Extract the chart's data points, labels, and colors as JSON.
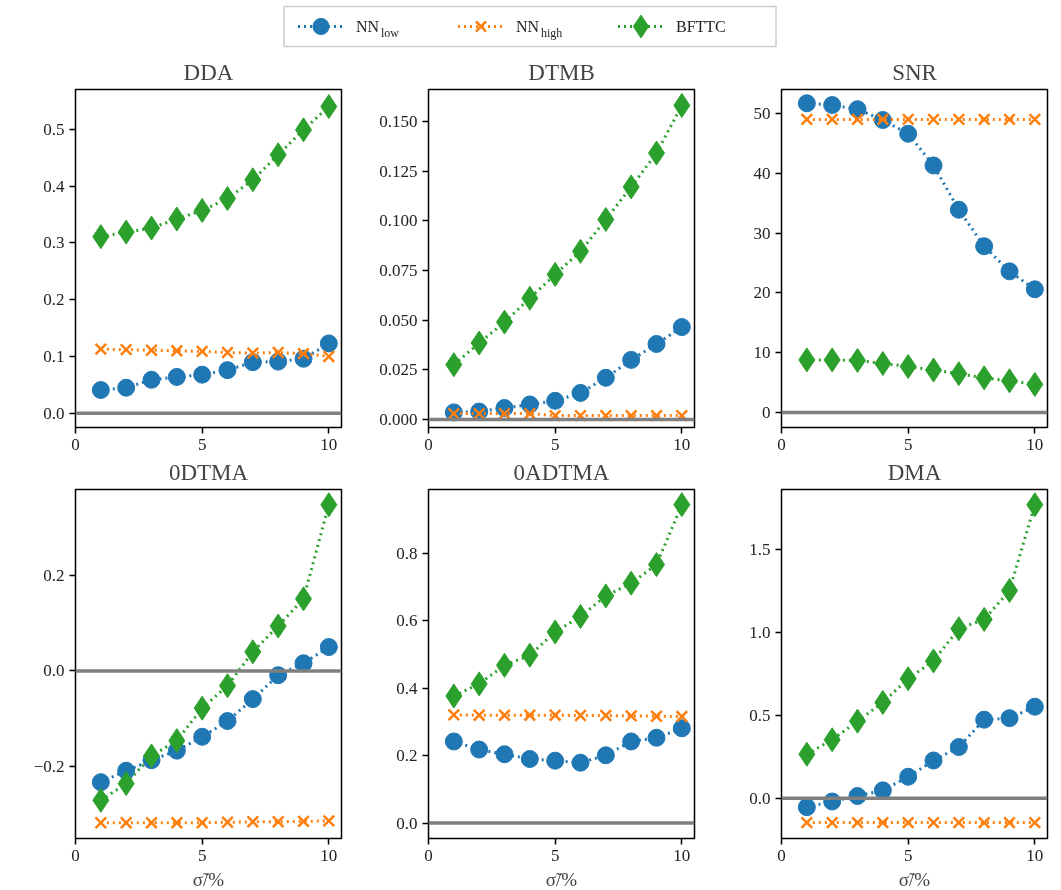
{
  "chart_data": [
    {
      "type": "line",
      "title": "DDA",
      "legend": "top",
      "line_style": "dotted",
      "grid": false,
      "x": [
        1,
        2,
        3,
        4,
        5,
        6,
        7,
        8,
        9,
        10
      ],
      "xlim": [
        0,
        10.5
      ],
      "xticks": [
        0,
        5,
        10
      ],
      "ylim": [
        -0.025,
        0.57
      ],
      "yticks": [
        {
          "value": 0,
          "label": "0.0"
        },
        0.1,
        0.2,
        0.3,
        0.4,
        0.5
      ],
      "ref_lines": [
        {
          "axis": "y",
          "value": 0,
          "color": "#808080"
        }
      ],
      "series": [
        {
          "name": "NN$_{low}$",
          "color": "#1f77b4",
          "marker": "circle",
          "values": [
            0.041,
            0.045,
            0.059,
            0.064,
            0.068,
            0.076,
            0.09,
            0.091,
            0.096,
            0.123
          ]
        },
        {
          "name": "NN$_{high}$",
          "color": "#ff7f0e",
          "marker": "cross",
          "values": [
            0.113,
            0.112,
            0.111,
            0.11,
            0.109,
            0.107,
            0.106,
            0.107,
            0.105,
            0.1
          ]
        },
        {
          "name": "BFTTC",
          "color": "#2ca02c",
          "marker": "diamond",
          "values": [
            0.311,
            0.319,
            0.326,
            0.342,
            0.357,
            0.378,
            0.411,
            0.455,
            0.499,
            0.54
          ]
        }
      ]
    },
    {
      "type": "line",
      "title": "DTMB",
      "line_style": "dotted",
      "grid": false,
      "x": [
        1,
        2,
        3,
        4,
        5,
        6,
        7,
        8,
        9,
        10
      ],
      "xlim": [
        0,
        10.5
      ],
      "xticks": [
        0,
        5,
        10
      ],
      "ylim": [
        -0.004,
        0.166
      ],
      "yticks": [
        {
          "value": 0,
          "label": "0.000"
        },
        {
          "value": 0.025,
          "label": "0.025"
        },
        {
          "value": 0.05,
          "label": "0.050"
        },
        {
          "value": 0.075,
          "label": "0.075"
        },
        {
          "value": 0.1,
          "label": "0.100"
        },
        {
          "value": 0.125,
          "label": "0.125"
        },
        {
          "value": 0.15,
          "label": "0.150"
        }
      ],
      "ref_lines": [
        {
          "axis": "y",
          "value": 0,
          "color": "#808080"
        }
      ],
      "series": [
        {
          "color": "#1f77b4",
          "marker": "circle",
          "values": [
            0.0036,
            0.004,
            0.0058,
            0.0076,
            0.0094,
            0.0134,
            0.021,
            0.03,
            0.038,
            0.0465
          ]
        },
        {
          "color": "#ff7f0e",
          "marker": "cross",
          "values": [
            0.003,
            0.003,
            0.003,
            0.003,
            0.002,
            0.002,
            0.002,
            0.002,
            0.002,
            0.002
          ]
        },
        {
          "color": "#2ca02c",
          "marker": "diamond",
          "values": [
            0.0276,
            0.0385,
            0.049,
            0.061,
            0.073,
            0.0846,
            0.1006,
            0.117,
            0.134,
            0.158
          ]
        }
      ]
    },
    {
      "type": "line",
      "title": "SNR",
      "line_style": "dotted",
      "grid": false,
      "x": [
        1,
        2,
        3,
        4,
        5,
        6,
        7,
        8,
        9,
        10
      ],
      "xlim": [
        0,
        10.5
      ],
      "xticks": [
        0,
        5,
        10
      ],
      "ylim": [
        -2.5,
        54
      ],
      "yticks": [
        0,
        10,
        20,
        30,
        40,
        50
      ],
      "ref_lines": [
        {
          "axis": "y",
          "value": 0,
          "color": "#808080"
        }
      ],
      "series": [
        {
          "color": "#1f77b4",
          "marker": "circle",
          "values": [
            51.7,
            51.4,
            50.7,
            48.9,
            46.6,
            41.3,
            33.9,
            27.8,
            23.6,
            20.6
          ]
        },
        {
          "color": "#ff7f0e",
          "marker": "cross",
          "values": [
            49,
            49,
            49,
            49,
            49,
            49,
            49,
            49,
            49,
            49
          ]
        },
        {
          "color": "#2ca02c",
          "marker": "diamond",
          "values": [
            8.8,
            8.8,
            8.7,
            8.2,
            7.7,
            7.1,
            6.5,
            5.8,
            5.3,
            4.7
          ]
        }
      ]
    },
    {
      "type": "line",
      "title": "0DTMA",
      "xlabel": "σ̃/%",
      "line_style": "dotted",
      "grid": false,
      "x": [
        1,
        2,
        3,
        4,
        5,
        6,
        7,
        8,
        9,
        10
      ],
      "xlim": [
        0,
        10.5
      ],
      "xticks": [
        0,
        5,
        10
      ],
      "ylim": [
        -0.351,
        0.38
      ],
      "yticks": [
        {
          "value": -0.2,
          "label": "−0.2"
        },
        {
          "value": 0,
          "label": "0.0"
        },
        0.2
      ],
      "ref_lines": [
        {
          "axis": "y",
          "value": 0,
          "color": "#808080"
        }
      ],
      "series": [
        {
          "color": "#1f77b4",
          "marker": "circle",
          "values": [
            -0.233,
            -0.209,
            -0.187,
            -0.167,
            -0.138,
            -0.105,
            -0.059,
            -0.009,
            0.016,
            0.05
          ]
        },
        {
          "color": "#ff7f0e",
          "marker": "cross",
          "values": [
            -0.318,
            -0.318,
            -0.318,
            -0.318,
            -0.318,
            -0.317,
            -0.316,
            -0.316,
            -0.315,
            -0.314
          ]
        },
        {
          "color": "#2ca02c",
          "marker": "diamond",
          "values": [
            -0.271,
            -0.236,
            -0.178,
            -0.146,
            -0.078,
            -0.031,
            0.04,
            0.094,
            0.151,
            0.348
          ]
        }
      ]
    },
    {
      "type": "line",
      "title": "0ADTMA",
      "xlabel": "σ̃/%",
      "line_style": "dotted",
      "grid": false,
      "x": [
        1,
        2,
        3,
        4,
        5,
        6,
        7,
        8,
        9,
        10
      ],
      "xlim": [
        0,
        10.5
      ],
      "xticks": [
        0,
        5,
        10
      ],
      "ylim": [
        -0.046,
        0.99
      ],
      "yticks": [
        {
          "value": 0,
          "label": "0.0"
        },
        0.2,
        0.4,
        0.6,
        0.8
      ],
      "ref_lines": [
        {
          "axis": "y",
          "value": 0,
          "color": "#808080"
        }
      ],
      "series": [
        {
          "color": "#1f77b4",
          "marker": "circle",
          "values": [
            0.242,
            0.218,
            0.204,
            0.19,
            0.185,
            0.179,
            0.201,
            0.242,
            0.253,
            0.281
          ]
        },
        {
          "color": "#ff7f0e",
          "marker": "cross",
          "values": [
            0.321,
            0.32,
            0.32,
            0.32,
            0.32,
            0.319,
            0.319,
            0.318,
            0.317,
            0.316
          ]
        },
        {
          "color": "#2ca02c",
          "marker": "diamond",
          "values": [
            0.377,
            0.413,
            0.468,
            0.498,
            0.567,
            0.613,
            0.674,
            0.712,
            0.767,
            0.945
          ]
        }
      ]
    },
    {
      "type": "line",
      "title": "DMA",
      "xlabel": "σ̃/%",
      "line_style": "dotted",
      "grid": false,
      "x": [
        1,
        2,
        3,
        4,
        5,
        6,
        7,
        8,
        9,
        10
      ],
      "xlim": [
        0,
        10.5
      ],
      "xticks": [
        0,
        5,
        10
      ],
      "ylim": [
        -0.243,
        1.86
      ],
      "yticks": [
        {
          "value": 0,
          "label": "0.0"
        },
        0.5,
        {
          "value": 1,
          "label": "1.0"
        },
        1.5
      ],
      "ref_lines": [
        {
          "axis": "y",
          "value": 0,
          "color": "#808080"
        }
      ],
      "series": [
        {
          "color": "#1f77b4",
          "marker": "circle",
          "values": [
            -0.054,
            -0.02,
            0.013,
            0.047,
            0.129,
            0.227,
            0.308,
            0.473,
            0.482,
            0.551
          ]
        },
        {
          "color": "#ff7f0e",
          "marker": "cross",
          "values": [
            -0.147,
            -0.147,
            -0.147,
            -0.147,
            -0.147,
            -0.147,
            -0.147,
            -0.147,
            -0.147,
            -0.147
          ]
        },
        {
          "color": "#2ca02c",
          "marker": "diamond",
          "values": [
            0.265,
            0.352,
            0.464,
            0.577,
            0.72,
            0.827,
            1.021,
            1.077,
            1.251,
            1.768
          ]
        }
      ]
    }
  ]
}
